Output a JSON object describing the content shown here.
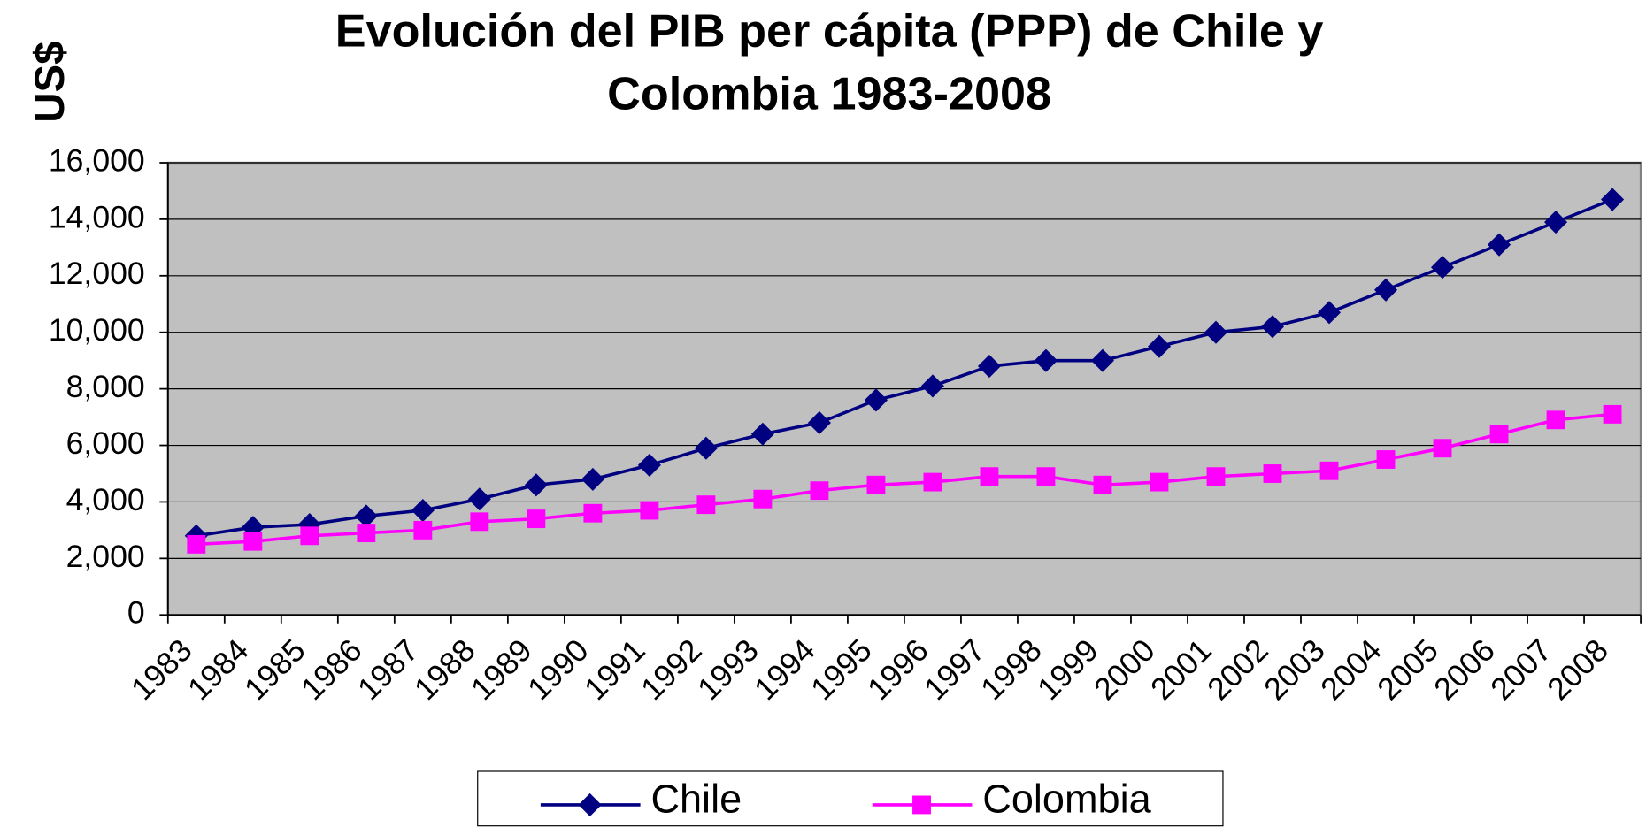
{
  "chart_data": {
    "type": "line",
    "title": "Evolución del PIB per cápita (PPP) de Chile y Colombia 1983-2008",
    "y_label": "US$",
    "categories": [
      "1983",
      "1984",
      "1985",
      "1986",
      "1987",
      "1988",
      "1989",
      "1990",
      "1991",
      "1992",
      "1993",
      "1994",
      "1995",
      "1996",
      "1997",
      "1998",
      "1999",
      "2000",
      "2001",
      "2002",
      "2003",
      "2004",
      "2005",
      "2006",
      "2007",
      "2008"
    ],
    "series": [
      {
        "name": "Chile",
        "color": "#000080",
        "marker": "diamond",
        "values": [
          2800,
          3100,
          3200,
          3500,
          3700,
          4100,
          4600,
          4800,
          5300,
          5900,
          6400,
          6800,
          7600,
          8100,
          8800,
          9000,
          9000,
          9500,
          10000,
          10200,
          10700,
          11500,
          12300,
          13100,
          13900,
          14700
        ]
      },
      {
        "name": "Colombia",
        "color": "#ff00ff",
        "marker": "square",
        "values": [
          2500,
          2600,
          2800,
          2900,
          3000,
          3300,
          3400,
          3600,
          3700,
          3900,
          4100,
          4400,
          4600,
          4700,
          4900,
          4900,
          4600,
          4700,
          4900,
          5000,
          5100,
          5500,
          5900,
          6400,
          6900,
          7100
        ]
      }
    ],
    "ylim": [
      0,
      16000
    ],
    "yticks": [
      0,
      {
        "value": 2000,
        "label": "2,000"
      },
      {
        "value": 4000,
        "label": "4,000"
      },
      {
        "value": 6000,
        "label": "6,000"
      },
      {
        "value": 8000,
        "label": "8,000"
      },
      {
        "value": 10000,
        "label": "10,000"
      },
      {
        "value": 12000,
        "label": "12,000"
      },
      {
        "value": 14000,
        "label": "14,000"
      },
      {
        "value": 16000,
        "label": "16,000"
      }
    ],
    "grid": true,
    "legend": "bottom",
    "plot_background": "#c0c0c0"
  }
}
